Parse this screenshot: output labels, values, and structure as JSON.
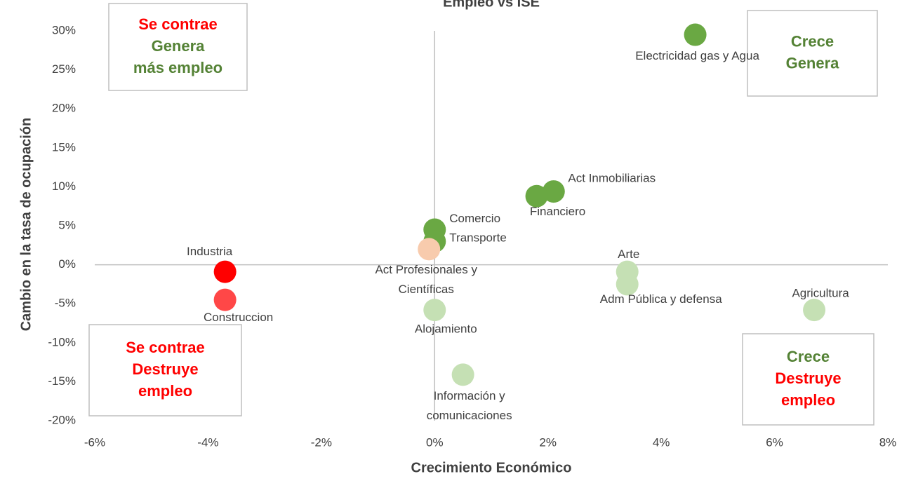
{
  "chart_data": {
    "type": "scatter",
    "title": "Empleo vs ISE",
    "xlabel": "Crecimiento Económico",
    "ylabel": "Cambio en la tasa de ocupación",
    "x": [
      4.6,
      2.1,
      1.8,
      0.0,
      0.0,
      -0.1,
      -3.7,
      -3.7,
      0.0,
      0.5,
      3.4,
      3.4,
      6.7
    ],
    "values": [
      29.5,
      9.4,
      8.8,
      4.5,
      3.0,
      2.0,
      -0.9,
      -4.5,
      -5.8,
      -14.1,
      -0.9,
      -2.5,
      -5.8
    ],
    "colors": [
      "#6aa843",
      "#6aa843",
      "#6aa843",
      "#6aa843",
      "#6aa843",
      "#f8cbad",
      "#ff0000",
      "#ff4747",
      "#c5e0b4",
      "#c5e0b4",
      "#c5e0b4",
      "#c5e0b4",
      "#c5e0b4"
    ],
    "point_labels": [
      "Electricidad gas y Agua",
      "Act Inmobiliarias",
      "Financiero",
      "Comercio",
      "Transporte",
      [
        "Act Profesionales y",
        "Científicas"
      ],
      "Industria",
      "Construccion",
      "Alojamiento",
      [
        "Información y",
        "comunicaciones"
      ],
      "Arte",
      "Adm Pública y defensa",
      "Agricultura"
    ],
    "xlim": [
      -6,
      8
    ],
    "ylim": [
      -20,
      30
    ],
    "xticks": [
      {
        "value": -6,
        "label": "-6%"
      },
      {
        "value": -4,
        "label": "-4%"
      },
      {
        "value": -2,
        "label": "-2%"
      },
      {
        "value": 0,
        "label": "0%"
      },
      {
        "value": 2,
        "label": "2%"
      },
      {
        "value": 4,
        "label": "4%"
      },
      {
        "value": 6,
        "label": "6%"
      },
      {
        "value": 8,
        "label": "8%"
      }
    ],
    "yticks": [
      {
        "value": -20,
        "label": "-20%"
      },
      {
        "value": -15,
        "label": "-15%"
      },
      {
        "value": -10,
        "label": "-10%"
      },
      {
        "value": -5,
        "label": "-5%"
      },
      {
        "value": 0,
        "label": "0%"
      },
      {
        "value": 5,
        "label": "5%"
      },
      {
        "value": 10,
        "label": "10%"
      },
      {
        "value": 15,
        "label": "15%"
      },
      {
        "value": 20,
        "label": "20%"
      },
      {
        "value": 25,
        "label": "25%"
      },
      {
        "value": 30,
        "label": "30%"
      }
    ],
    "grid": false,
    "annotations": [
      {
        "lines": [
          {
            "text": "Se contrae",
            "color": "#ff0000"
          },
          {
            "text": "Genera",
            "color": "#548235"
          },
          {
            "text": "más empleo",
            "color": "#548235"
          }
        ]
      },
      {
        "lines": [
          {
            "text": "Crece",
            "color": "#548235"
          },
          {
            "text": "Genera",
            "color": "#548235"
          }
        ]
      },
      {
        "lines": [
          {
            "text": "Se contrae",
            "color": "#ff0000"
          },
          {
            "text": "Destruye",
            "color": "#ff0000"
          },
          {
            "text": "empleo",
            "color": "#ff0000"
          }
        ]
      },
      {
        "lines": [
          {
            "text": "Crece",
            "color": "#548235"
          },
          {
            "text": "Destruye",
            "color": "#ff0000"
          },
          {
            "text": "empleo",
            "color": "#ff0000"
          }
        ]
      }
    ]
  }
}
